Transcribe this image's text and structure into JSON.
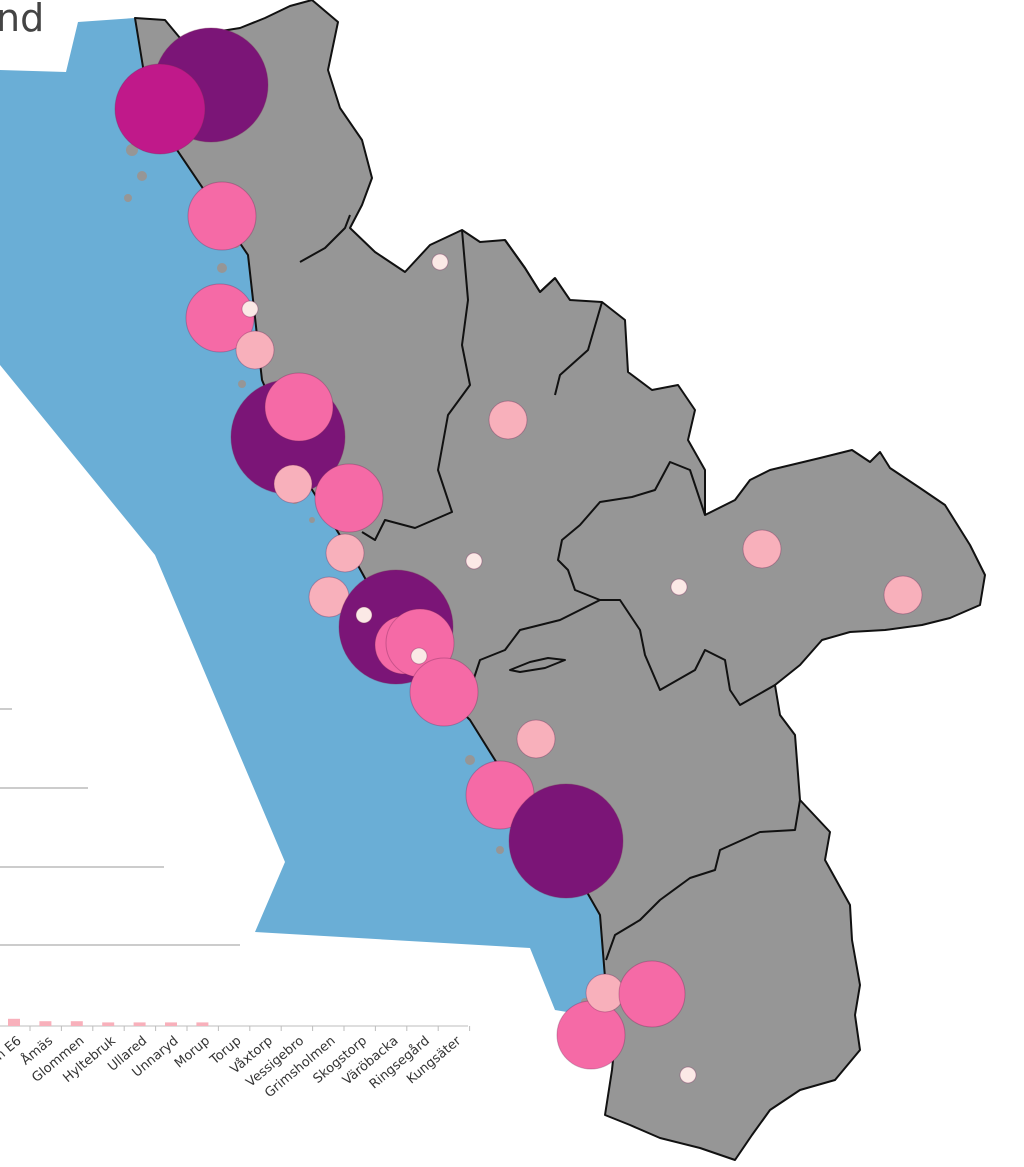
{
  "title_fragment": "nd",
  "colors": {
    "sea": "#6aaed6",
    "land": "#969696",
    "border": "#111111",
    "dark_purple": "#7b1577",
    "magenta": "#c0198a",
    "pink": "#f56aa6",
    "light_pink": "#f8b0bb",
    "pale": "#fbe9e6",
    "bar": "#f8b0bb"
  },
  "chart_data": {
    "type": "bar",
    "title": "",
    "categories": [
      "E6",
      "Åmäs",
      "Glommen",
      "Hyltebruk",
      "Ullared",
      "Unnaryd",
      "Morup",
      "Torup",
      "Våxtorp",
      "Vessigebro",
      "Grimsholmen",
      "Skogstorp",
      "Väröbacka",
      "Ringsegård",
      "Kungsäter"
    ],
    "category_labels": [
      "n E6",
      "Åmäs",
      "Glommen",
      "Hyltebruk",
      "Ullared",
      "Unnaryd",
      "Morup",
      "Torup",
      "Våxtorp",
      "Vessigebro",
      "Grimsholmen",
      "Skogstorp",
      "Väröbacka",
      "Ringsegård",
      "Kungsäter"
    ],
    "values": [
      6,
      4,
      4,
      3,
      3,
      3,
      3,
      0,
      0,
      0,
      0,
      0,
      0,
      0,
      0
    ],
    "grid": true,
    "note": "chart mostly hidden behind map; bar values are small relative to axis"
  },
  "map": {
    "legend_sizes": [
      "small",
      "medium",
      "large",
      "xlarge"
    ],
    "markers": [
      {
        "size": "xlarge",
        "color": "dark_purple",
        "label": "north-1"
      },
      {
        "size": "large",
        "color": "magenta",
        "label": "north-2"
      },
      {
        "size": "medium",
        "color": "pink",
        "label": "coast-1"
      },
      {
        "size": "small",
        "color": "pale",
        "label": "inland-1"
      },
      {
        "size": "medium",
        "color": "pink",
        "label": "coast-2"
      },
      {
        "size": "small",
        "color": "pale",
        "label": "coast-3"
      },
      {
        "size": "small",
        "color": "light_pink",
        "label": "coast-4"
      },
      {
        "size": "xlarge",
        "color": "dark_purple",
        "label": "city-1"
      },
      {
        "size": "medium",
        "color": "pink",
        "label": "city-1b"
      },
      {
        "size": "small",
        "color": "light_pink",
        "label": "inland-2"
      },
      {
        "size": "small",
        "color": "light_pink",
        "label": "coast-5"
      },
      {
        "size": "medium",
        "color": "pink",
        "label": "coast-6"
      },
      {
        "size": "small",
        "color": "light_pink",
        "label": "coast-7"
      },
      {
        "size": "small",
        "color": "pale",
        "label": "inland-3"
      },
      {
        "size": "small",
        "color": "light_pink",
        "label": "inland-4"
      },
      {
        "size": "small",
        "color": "pale",
        "label": "inland-5"
      },
      {
        "size": "small",
        "color": "light_pink",
        "label": "inland-6"
      },
      {
        "size": "small",
        "color": "light_pink",
        "label": "coast-8"
      },
      {
        "size": "xlarge",
        "color": "dark_purple",
        "label": "city-2"
      },
      {
        "size": "small",
        "color": "pale",
        "label": "city-2b"
      },
      {
        "size": "medium",
        "color": "pink",
        "label": "city-2c"
      },
      {
        "size": "medium",
        "color": "pink",
        "label": "city-2d"
      },
      {
        "size": "small",
        "color": "pale",
        "label": "city-2e"
      },
      {
        "size": "small",
        "color": "pale",
        "label": "city-2f"
      },
      {
        "size": "medium",
        "color": "pink",
        "label": "coast-9"
      },
      {
        "size": "small",
        "color": "light_pink",
        "label": "inland-7"
      },
      {
        "size": "medium",
        "color": "pink",
        "label": "coast-10"
      },
      {
        "size": "xlarge",
        "color": "dark_purple",
        "label": "city-3"
      },
      {
        "size": "medium",
        "color": "pink",
        "label": "south-1"
      },
      {
        "size": "small",
        "color": "light_pink",
        "label": "south-2"
      },
      {
        "size": "medium",
        "color": "pink",
        "label": "south-3"
      },
      {
        "size": "small",
        "color": "pale",
        "label": "south-4"
      }
    ]
  }
}
